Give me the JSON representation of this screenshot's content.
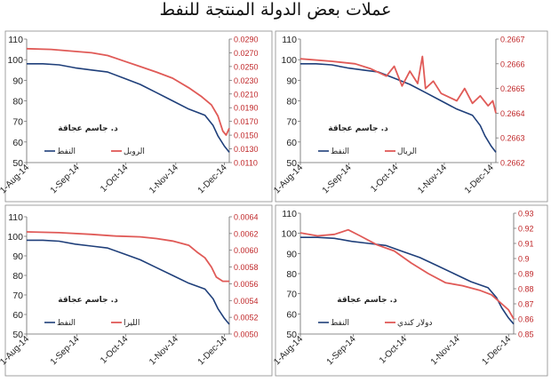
{
  "title": "عملات بعض الدولة المنتجة للنفط",
  "colors": {
    "oil": "#1f3f7a",
    "currency": "#e05a57",
    "right_axis_text": "#c0282a"
  },
  "chart_data": [
    {
      "type": "line",
      "author": "د. جاسم عجاقة",
      "x_ticks": [
        "1-Aug-14",
        "1-Sep-14",
        "1-Oct-14",
        "1-Nov-14",
        "1-Dec-14"
      ],
      "left_axis": {
        "ylim": [
          50,
          110
        ],
        "ticks": [
          "50",
          "60",
          "70",
          "80",
          "90",
          "100",
          "110"
        ]
      },
      "right_axis": {
        "ylim": [
          0.011,
          0.029
        ],
        "ticks": [
          "0.0110",
          "0.0130",
          "0.0150",
          "0.0170",
          "0.0190",
          "0.0210",
          "0.0230",
          "0.0250",
          "0.0270",
          "0.0290"
        ]
      },
      "series": [
        {
          "name": "النفط",
          "axis": "left",
          "values": [
            [
              0,
              98
            ],
            [
              10,
              98
            ],
            [
              20,
              97.5
            ],
            [
              30,
              96
            ],
            [
              40,
              95
            ],
            [
              50,
              94
            ],
            [
              60,
              91
            ],
            [
              70,
              88
            ],
            [
              80,
              84
            ],
            [
              90,
              80
            ],
            [
              100,
              76
            ],
            [
              110,
              73
            ],
            [
              115,
              68
            ],
            [
              118,
              63
            ],
            [
              122,
              58
            ],
            [
              125,
              55
            ]
          ]
        },
        {
          "name": "الروبل",
          "axis": "right",
          "values": [
            [
              0,
              0.0276
            ],
            [
              15,
              0.0275
            ],
            [
              30,
              0.0272
            ],
            [
              40,
              0.027
            ],
            [
              50,
              0.0266
            ],
            [
              60,
              0.0258
            ],
            [
              70,
              0.025
            ],
            [
              80,
              0.0242
            ],
            [
              90,
              0.0233
            ],
            [
              100,
              0.0219
            ],
            [
              108,
              0.0206
            ],
            [
              114,
              0.0194
            ],
            [
              118,
              0.0178
            ],
            [
              121,
              0.0156
            ],
            [
              123,
              0.015
            ],
            [
              125,
              0.016
            ]
          ]
        }
      ]
    },
    {
      "type": "line",
      "author": "د. جاسم عجاقة",
      "x_ticks": [
        "1-Aug-14",
        "1-Sep-14",
        "1-Oct-14",
        "1-Nov-14",
        "1-Dec-14"
      ],
      "left_axis": {
        "ylim": [
          50,
          110
        ],
        "ticks": [
          "50",
          "60",
          "70",
          "80",
          "90",
          "100",
          "110"
        ]
      },
      "right_axis": {
        "ylim": [
          0.2662,
          0.2667
        ],
        "ticks": [
          "0.2662",
          "0.2663",
          "0.2664",
          "0.2665",
          "0.2666",
          "0.2667"
        ]
      },
      "series": [
        {
          "name": "النفط",
          "axis": "left",
          "values": [
            [
              0,
              98
            ],
            [
              10,
              98
            ],
            [
              20,
              97.5
            ],
            [
              30,
              96
            ],
            [
              40,
              95
            ],
            [
              50,
              94
            ],
            [
              60,
              91
            ],
            [
              70,
              88
            ],
            [
              80,
              84
            ],
            [
              90,
              80
            ],
            [
              100,
              76
            ],
            [
              110,
              73
            ],
            [
              115,
              68
            ],
            [
              118,
              63
            ],
            [
              122,
              58
            ],
            [
              125,
              55
            ]
          ]
        },
        {
          "name": "الريال",
          "axis": "right",
          "values": [
            [
              0,
              0.26662
            ],
            [
              20,
              0.26661
            ],
            [
              35,
              0.2666
            ],
            [
              45,
              0.26658
            ],
            [
              55,
              0.26655
            ],
            [
              60,
              0.26659
            ],
            [
              65,
              0.26651
            ],
            [
              70,
              0.26657
            ],
            [
              75,
              0.26652
            ],
            [
              78,
              0.26663
            ],
            [
              80,
              0.2665
            ],
            [
              85,
              0.26653
            ],
            [
              90,
              0.26648
            ],
            [
              100,
              0.26645
            ],
            [
              105,
              0.2665
            ],
            [
              110,
              0.26644
            ],
            [
              115,
              0.26647
            ],
            [
              120,
              0.26643
            ],
            [
              123,
              0.26645
            ],
            [
              125,
              0.2664
            ]
          ]
        }
      ]
    },
    {
      "type": "line",
      "author": "د. جاسم عجاقة",
      "x_ticks": [
        "1-Aug-14",
        "1-Sep-14",
        "1-Oct-14",
        "1-Nov-14",
        "1-Dec-14"
      ],
      "left_axis": {
        "ylim": [
          50,
          110
        ],
        "ticks": [
          "50",
          "60",
          "70",
          "80",
          "90",
          "100",
          "110"
        ]
      },
      "right_axis": {
        "ylim": [
          0.005,
          0.0064
        ],
        "ticks": [
          "0.0050",
          "0.0052",
          "0.0054",
          "0.0056",
          "0.0058",
          "0.0060",
          "0.0062",
          "0.0064"
        ]
      },
      "series": [
        {
          "name": "النفط",
          "axis": "left",
          "values": [
            [
              0,
              98
            ],
            [
              10,
              98
            ],
            [
              20,
              97.5
            ],
            [
              30,
              96
            ],
            [
              40,
              95
            ],
            [
              50,
              94
            ],
            [
              60,
              91
            ],
            [
              70,
              88
            ],
            [
              80,
              84
            ],
            [
              90,
              80
            ],
            [
              100,
              76
            ],
            [
              110,
              73
            ],
            [
              115,
              68
            ],
            [
              118,
              63
            ],
            [
              122,
              58
            ],
            [
              125,
              55
            ]
          ]
        },
        {
          "name": "الليرا",
          "axis": "right",
          "values": [
            [
              0,
              0.00622
            ],
            [
              20,
              0.00621
            ],
            [
              40,
              0.00619
            ],
            [
              55,
              0.00617
            ],
            [
              70,
              0.00616
            ],
            [
              80,
              0.00614
            ],
            [
              90,
              0.00611
            ],
            [
              100,
              0.00606
            ],
            [
              105,
              0.00598
            ],
            [
              110,
              0.00591
            ],
            [
              114,
              0.0058
            ],
            [
              117,
              0.00568
            ],
            [
              121,
              0.00563
            ],
            [
              125,
              0.00563
            ]
          ]
        }
      ]
    },
    {
      "type": "line",
      "author": "د. جاسم عجاقة",
      "x_ticks": [
        "1-Aug-14",
        "1-Sep-14",
        "1-Oct-14",
        "1-Nov-14",
        "1-Dec-14"
      ],
      "left_axis": {
        "ylim": [
          50,
          110
        ],
        "ticks": [
          "50",
          "60",
          "70",
          "80",
          "90",
          "100",
          "110"
        ]
      },
      "right_axis": {
        "ylim": [
          0.85,
          0.93
        ],
        "ticks": [
          "0.85",
          "0.86",
          "0.87",
          "0.88",
          "0.89",
          "0.9",
          "0.91",
          "0.92",
          "0.93"
        ]
      },
      "series": [
        {
          "name": "النفط",
          "axis": "left",
          "values": [
            [
              0,
              98
            ],
            [
              10,
              98
            ],
            [
              20,
              97.5
            ],
            [
              30,
              96
            ],
            [
              40,
              95
            ],
            [
              50,
              94
            ],
            [
              60,
              91
            ],
            [
              70,
              88
            ],
            [
              80,
              84
            ],
            [
              90,
              80
            ],
            [
              100,
              76
            ],
            [
              110,
              73
            ],
            [
              115,
              68
            ],
            [
              118,
              63
            ],
            [
              122,
              58
            ],
            [
              125,
              55
            ]
          ]
        },
        {
          "name": "دولار كندي",
          "axis": "right",
          "values": [
            [
              0,
              0.917
            ],
            [
              10,
              0.915
            ],
            [
              20,
              0.916
            ],
            [
              28,
              0.919
            ],
            [
              35,
              0.915
            ],
            [
              45,
              0.909
            ],
            [
              55,
              0.905
            ],
            [
              65,
              0.897
            ],
            [
              75,
              0.89
            ],
            [
              85,
              0.884
            ],
            [
              95,
              0.882
            ],
            [
              105,
              0.879
            ],
            [
              112,
              0.876
            ],
            [
              118,
              0.87
            ],
            [
              122,
              0.866
            ],
            [
              125,
              0.86
            ]
          ]
        }
      ]
    }
  ]
}
